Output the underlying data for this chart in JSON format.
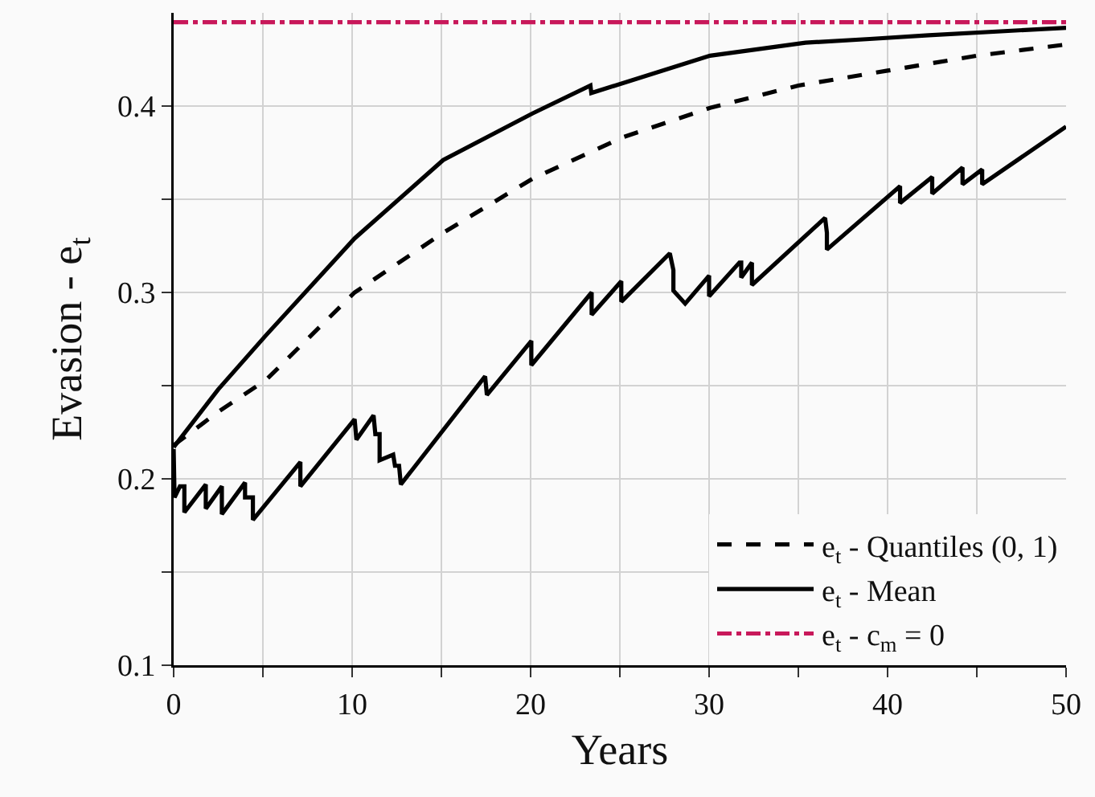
{
  "chart_data": {
    "type": "line",
    "xlabel": "Years",
    "ylabel": "Evasion - e$_{t}$",
    "xlim": [
      0,
      50
    ],
    "ylim": [
      0.1,
      0.45
    ],
    "xticks": [
      0,
      {
        "value": 5,
        "label": null
      },
      10,
      {
        "value": 15,
        "label": null
      },
      20,
      {
        "value": 25,
        "label": null
      },
      30,
      {
        "value": 35,
        "label": null
      },
      40,
      {
        "value": 45,
        "label": null
      },
      50
    ],
    "yticks": [
      0.1,
      {
        "value": 0.15,
        "label": null
      },
      0.2,
      {
        "value": 0.25,
        "label": null
      },
      0.3,
      {
        "value": 0.35,
        "label": null
      },
      0.4
    ],
    "grid": true,
    "legend": "bottom right",
    "marker": "none",
    "series": [
      {
        "name": "e$_{t}$ - Quantiles (0, 1)",
        "color": "#000000",
        "line_style": "dashed",
        "x": [
          0,
          2.5,
          5.17,
          10.14,
          15.1,
          20.1,
          25.1,
          30.05,
          35.0,
          40.0,
          45.0,
          50
        ],
        "values": [
          0.218,
          0.236,
          0.253,
          0.3,
          0.332,
          0.361,
          0.383,
          0.399,
          0.411,
          0.419,
          0.427,
          0.433
        ]
      },
      {
        "name": "e$_{t}$ - Mean",
        "color": "#000000",
        "line_style": "solid",
        "x": [
          0,
          2.5,
          5.17,
          10.14,
          15.1,
          20.1,
          23.35,
          23.4,
          30.05,
          35.4,
          39.0,
          42.3,
          50
        ],
        "values": [
          0.217,
          0.248,
          0.277,
          0.329,
          0.371,
          0.396,
          0.411,
          0.407,
          0.427,
          0.434,
          0.436,
          0.438,
          0.442
        ]
      },
      {
        "color": "#000000",
        "line_style": "solid",
        "x": [
          0,
          0.05,
          0.35,
          0.6,
          0.6,
          1.8,
          1.8,
          2.7,
          2.7,
          4.0,
          4.0,
          4.44,
          4.44,
          7.1,
          7.1,
          10.14,
          10.24,
          11.2,
          11.3,
          11.54,
          11.54,
          12.3,
          12.4,
          12.63,
          12.73,
          17.45,
          17.55,
          20.04,
          20.04,
          23.42,
          23.42,
          25.08,
          25.08,
          27.8,
          28.0,
          28.0,
          28.66,
          30.0,
          30.0,
          31.7,
          31.8,
          31.8,
          32.4,
          32.4,
          36.5,
          36.6,
          36.6,
          40.7,
          40.7,
          42.5,
          42.5,
          44.2,
          44.2,
          45.3,
          45.3,
          50
        ],
        "values": [
          0.216,
          0.19,
          0.196,
          0.196,
          0.182,
          0.197,
          0.184,
          0.196,
          0.181,
          0.198,
          0.19,
          0.19,
          0.178,
          0.209,
          0.196,
          0.232,
          0.221,
          0.234,
          0.224,
          0.224,
          0.21,
          0.213,
          0.207,
          0.207,
          0.197,
          0.255,
          0.245,
          0.274,
          0.261,
          0.3,
          0.288,
          0.306,
          0.295,
          0.321,
          0.312,
          0.301,
          0.294,
          0.309,
          0.298,
          0.316,
          0.316,
          0.308,
          0.316,
          0.304,
          0.34,
          0.332,
          0.323,
          0.357,
          0.348,
          0.362,
          0.353,
          0.367,
          0.358,
          0.366,
          0.358,
          0.389
        ]
      },
      {
        "name": "e$_{t}$ - c$_{m}$ = 0",
        "color": "#c8185a",
        "line_style": "dashdot",
        "x": [
          0,
          50
        ],
        "values": [
          0.445,
          0.445
        ]
      }
    ]
  }
}
